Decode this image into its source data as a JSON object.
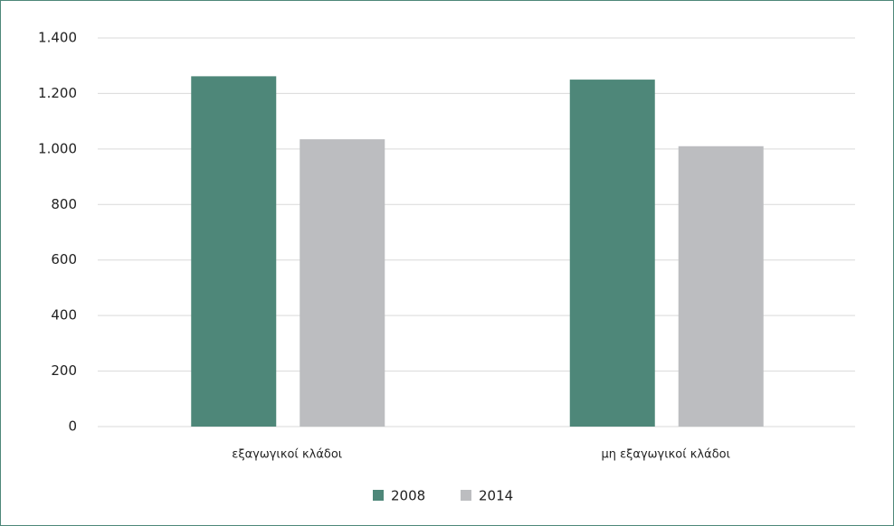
{
  "chart_data": {
    "type": "bar",
    "categories": [
      "εξαγωγικοί κλάδοι",
      "μη εξαγωγικοί κλάδοι"
    ],
    "series": [
      {
        "name": "2008",
        "color": "#4e8779",
        "values": [
          1262,
          1250
        ]
      },
      {
        "name": "2014",
        "color": "#bcbdc0",
        "values": [
          1035,
          1010
        ]
      }
    ],
    "ylim": [
      0,
      1400
    ],
    "yticks": [
      0,
      200,
      400,
      600,
      800,
      {
        "value": 1000,
        "label": "1.000"
      },
      {
        "value": 1200,
        "label": "1.200"
      },
      {
        "value": 1400,
        "label": "1.400"
      }
    ],
    "grid": true,
    "legend": "bottom"
  }
}
